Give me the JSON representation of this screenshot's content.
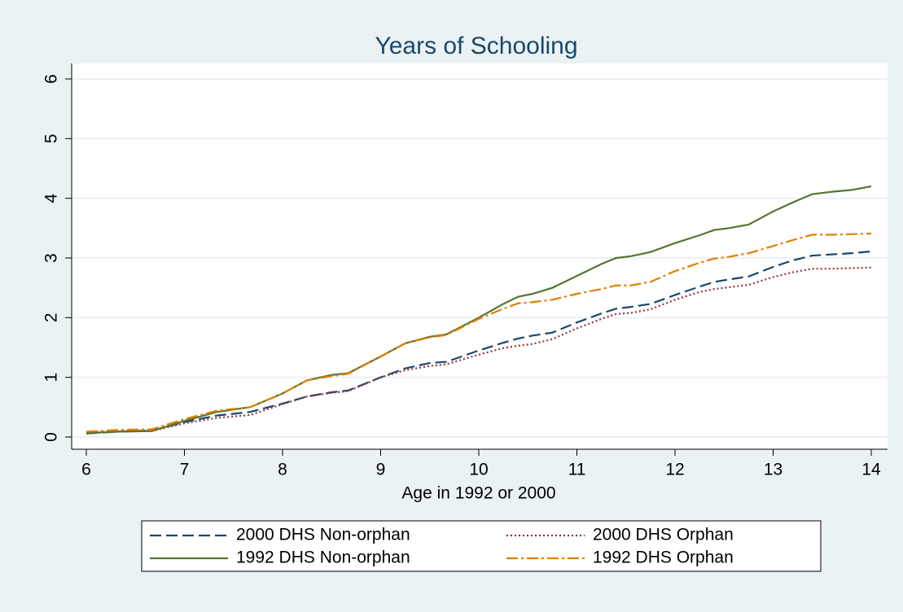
{
  "chart_data": {
    "type": "line",
    "title": "Years of Schooling",
    "x_label": "Age in 1992 or 2000",
    "x": [
      6,
      6.33,
      6.67,
      7,
      7.33,
      7.67,
      8,
      8.25,
      8.5,
      8.67,
      9,
      9.25,
      9.5,
      9.67,
      10,
      10.25,
      10.4,
      10.55,
      10.75,
      11,
      11.25,
      11.4,
      11.55,
      11.75,
      12,
      12.25,
      12.4,
      12.55,
      12.75,
      13,
      13.2,
      13.4,
      13.6,
      13.8,
      14
    ],
    "series": [
      {
        "name": "2000 DHS Non-orphan",
        "color": "#1a476f",
        "dash": "dash",
        "values": [
          0.06,
          0.09,
          0.11,
          0.25,
          0.36,
          0.42,
          0.56,
          0.68,
          0.75,
          0.78,
          1.0,
          1.15,
          1.24,
          1.26,
          1.45,
          1.58,
          1.65,
          1.7,
          1.75,
          1.92,
          2.07,
          2.15,
          2.18,
          2.23,
          2.38,
          2.52,
          2.6,
          2.64,
          2.69,
          2.85,
          2.96,
          3.04,
          3.06,
          3.08,
          3.11
        ]
      },
      {
        "name": "2000 DHS Orphan",
        "color": "#90353b",
        "dash": "dot",
        "values": [
          0.06,
          0.09,
          0.1,
          0.23,
          0.32,
          0.37,
          0.55,
          0.68,
          0.74,
          0.77,
          1.0,
          1.12,
          1.19,
          1.22,
          1.38,
          1.49,
          1.53,
          1.56,
          1.64,
          1.82,
          1.98,
          2.06,
          2.08,
          2.14,
          2.3,
          2.43,
          2.48,
          2.51,
          2.55,
          2.68,
          2.76,
          2.82,
          2.82,
          2.83,
          2.84
        ]
      },
      {
        "name": "1992 DHS Non-orphan",
        "color": "#55752f",
        "dash": "solid",
        "values": [
          0.07,
          0.09,
          0.1,
          0.27,
          0.42,
          0.5,
          0.73,
          0.95,
          1.04,
          1.07,
          1.35,
          1.57,
          1.68,
          1.72,
          2.0,
          2.23,
          2.35,
          2.4,
          2.5,
          2.7,
          2.9,
          3.0,
          3.03,
          3.1,
          3.25,
          3.38,
          3.47,
          3.5,
          3.56,
          3.78,
          3.93,
          4.07,
          4.11,
          4.14,
          4.2
        ]
      },
      {
        "name": "1992 DHS Orphan",
        "color": "#e37e00",
        "dash": "dashdot",
        "values": [
          0.09,
          0.12,
          0.13,
          0.3,
          0.44,
          0.5,
          0.73,
          0.95,
          1.02,
          1.06,
          1.35,
          1.57,
          1.67,
          1.71,
          1.98,
          2.15,
          2.24,
          2.26,
          2.3,
          2.4,
          2.48,
          2.54,
          2.54,
          2.6,
          2.78,
          2.92,
          2.99,
          3.02,
          3.08,
          3.2,
          3.3,
          3.39,
          3.39,
          3.4,
          3.41
        ]
      }
    ],
    "xlim": [
      6,
      14
    ],
    "xticks": [
      6,
      7,
      8,
      9,
      10,
      11,
      12,
      13,
      14
    ],
    "ylim": [
      0,
      6
    ],
    "yticks": [
      0,
      1,
      2,
      3,
      4,
      5,
      6
    ],
    "grid": true,
    "legend": "bottom"
  }
}
